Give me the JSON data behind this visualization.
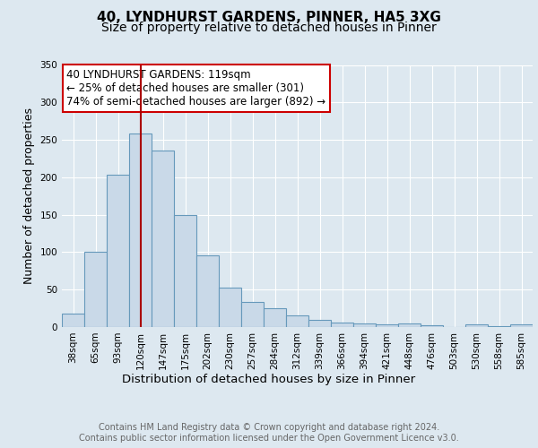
{
  "title": "40, LYNDHURST GARDENS, PINNER, HA5 3XG",
  "subtitle": "Size of property relative to detached houses in Pinner",
  "xlabel": "Distribution of detached houses by size in Pinner",
  "ylabel": "Number of detached properties",
  "bar_labels": [
    "38sqm",
    "65sqm",
    "93sqm",
    "120sqm",
    "147sqm",
    "175sqm",
    "202sqm",
    "230sqm",
    "257sqm",
    "284sqm",
    "312sqm",
    "339sqm",
    "366sqm",
    "394sqm",
    "421sqm",
    "448sqm",
    "476sqm",
    "503sqm",
    "530sqm",
    "558sqm",
    "585sqm"
  ],
  "bar_values": [
    18,
    100,
    204,
    258,
    236,
    149,
    96,
    53,
    34,
    25,
    15,
    9,
    6,
    5,
    4,
    5,
    2,
    0,
    3,
    1,
    3
  ],
  "bar_color": "#c9d9e8",
  "bar_edge_color": "#6699bb",
  "background_color": "#dde8f0",
  "plot_bg_color": "#dde8f0",
  "grid_color": "#ffffff",
  "vline_x": 3,
  "vline_color": "#aa0000",
  "annotation_text": "40 LYNDHURST GARDENS: 119sqm\n← 25% of detached houses are smaller (301)\n74% of semi-detached houses are larger (892) →",
  "annotation_box_color": "#ffffff",
  "annotation_box_edge_color": "#cc0000",
  "ylim": [
    0,
    350
  ],
  "yticks": [
    0,
    50,
    100,
    150,
    200,
    250,
    300,
    350
  ],
  "footer_text": "Contains HM Land Registry data © Crown copyright and database right 2024.\nContains public sector information licensed under the Open Government Licence v3.0.",
  "title_fontsize": 11,
  "subtitle_fontsize": 10,
  "xlabel_fontsize": 9.5,
  "ylabel_fontsize": 9,
  "tick_fontsize": 7.5,
  "annotation_fontsize": 8.5,
  "footer_fontsize": 7
}
